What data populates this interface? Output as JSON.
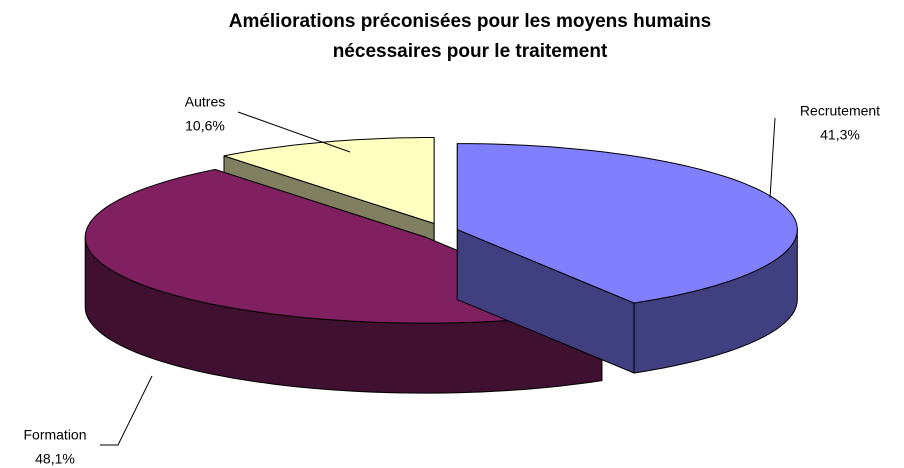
{
  "chart_data": {
    "type": "pie3d",
    "title": [
      "Améliorations préconisées pour les moyens humains",
      "nécessaires pour le traitement"
    ],
    "categories": [
      "Recrutement",
      "Formation",
      "Autres"
    ],
    "values": [
      41.3,
      48.1,
      10.6
    ],
    "value_labels": [
      "41,3%",
      "48,1%",
      "10,6%"
    ],
    "colors": [
      "#8080ff",
      "#802060",
      "#ffffc0"
    ]
  }
}
